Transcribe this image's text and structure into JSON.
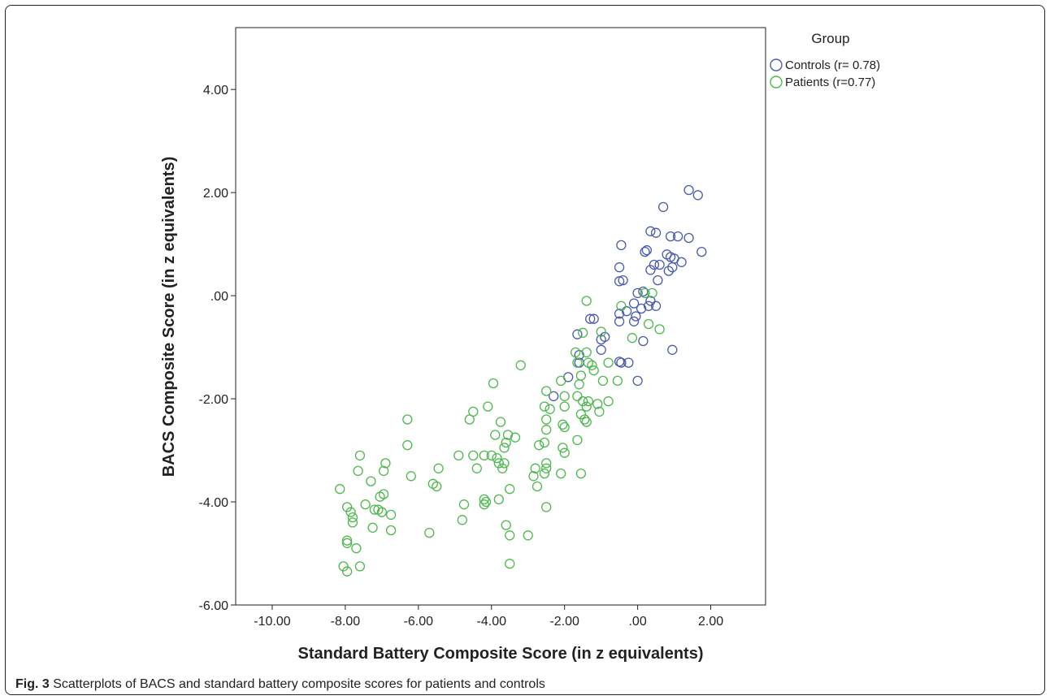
{
  "figure": {
    "label": "Fig. 3",
    "caption": "Scatterplots of BACS and standard battery composite scores for patients and controls"
  },
  "chart_data": {
    "type": "scatter",
    "title": "",
    "xlabel": "Standard Battery Composite Score (in z equivalents)",
    "ylabel": "BACS Composite Score (in z equivalents)",
    "xlim": [
      -11.0,
      3.5
    ],
    "ylim": [
      -6.0,
      5.2
    ],
    "x_ticks": [
      -10,
      -8,
      -6,
      -4,
      -2,
      0,
      2
    ],
    "x_tick_labels": [
      "-10.00",
      "-8.00",
      "-6.00",
      "-4.00",
      "-2.00",
      ".00",
      "2.00"
    ],
    "y_ticks": [
      4,
      2,
      0,
      -2,
      -4,
      -6
    ],
    "y_tick_labels": [
      "4.00",
      "2.00",
      ".00",
      "-2.00",
      "-4.00",
      "-6.00"
    ],
    "grid": false,
    "legend": {
      "title": "Group",
      "position": "outside-top-right"
    },
    "series": [
      {
        "name": "Controls (r= 0.78)",
        "color": "#4a5aad",
        "points": [
          [
            1.4,
            2.05
          ],
          [
            1.65,
            1.95
          ],
          [
            0.7,
            1.72
          ],
          [
            1.4,
            1.12
          ],
          [
            1.75,
            0.85
          ],
          [
            0.35,
            1.25
          ],
          [
            0.5,
            1.22
          ],
          [
            0.9,
            1.15
          ],
          [
            1.1,
            1.15
          ],
          [
            -0.45,
            0.98
          ],
          [
            0.2,
            0.85
          ],
          [
            0.25,
            0.88
          ],
          [
            0.8,
            0.8
          ],
          [
            0.9,
            0.75
          ],
          [
            1.0,
            0.72
          ],
          [
            0.45,
            0.6
          ],
          [
            0.6,
            0.6
          ],
          [
            0.35,
            0.5
          ],
          [
            0.95,
            0.55
          ],
          [
            1.2,
            0.65
          ],
          [
            0.85,
            0.48
          ],
          [
            -0.5,
            0.55
          ],
          [
            -0.5,
            0.28
          ],
          [
            -0.4,
            0.3
          ],
          [
            0.55,
            0.3
          ],
          [
            0.0,
            0.05
          ],
          [
            0.15,
            0.08
          ],
          [
            -0.1,
            -0.15
          ],
          [
            0.35,
            -0.1
          ],
          [
            0.3,
            -0.2
          ],
          [
            0.1,
            -0.25
          ],
          [
            0.5,
            -0.2
          ],
          [
            -0.5,
            -0.35
          ],
          [
            -0.5,
            -0.5
          ],
          [
            -0.05,
            -0.4
          ],
          [
            -0.1,
            -0.5
          ],
          [
            -1.2,
            -0.45
          ],
          [
            -1.3,
            -0.45
          ],
          [
            -0.3,
            -0.3
          ],
          [
            -1.65,
            -0.75
          ],
          [
            -0.9,
            -0.8
          ],
          [
            -1.0,
            -0.85
          ],
          [
            0.15,
            -0.88
          ],
          [
            0.95,
            -1.05
          ],
          [
            -1.0,
            -1.05
          ],
          [
            -1.6,
            -1.15
          ],
          [
            -1.6,
            -1.3
          ],
          [
            -0.5,
            -1.28
          ],
          [
            -0.45,
            -1.3
          ],
          [
            -0.25,
            -1.3
          ],
          [
            -1.9,
            -1.58
          ],
          [
            0.0,
            -1.65
          ],
          [
            -2.3,
            -1.95
          ]
        ]
      },
      {
        "name": "Patients (r=0.77)",
        "color": "#4cb84c",
        "points": [
          [
            -1.4,
            -0.1
          ],
          [
            -0.45,
            -0.2
          ],
          [
            0.2,
            0.05
          ],
          [
            0.4,
            0.05
          ],
          [
            -1.5,
            -0.72
          ],
          [
            0.3,
            -0.55
          ],
          [
            0.6,
            -0.65
          ],
          [
            -1.0,
            -0.7
          ],
          [
            -0.15,
            -0.82
          ],
          [
            -1.4,
            -1.1
          ],
          [
            -1.7,
            -1.1
          ],
          [
            -1.35,
            -1.3
          ],
          [
            -1.65,
            -1.3
          ],
          [
            -1.25,
            -1.35
          ],
          [
            -0.8,
            -1.3
          ],
          [
            -1.2,
            -1.45
          ],
          [
            -1.55,
            -1.55
          ],
          [
            -1.6,
            -1.72
          ],
          [
            -0.55,
            -1.65
          ],
          [
            -0.95,
            -1.65
          ],
          [
            -3.2,
            -1.35
          ],
          [
            -3.95,
            -1.7
          ],
          [
            -2.1,
            -1.65
          ],
          [
            -2.5,
            -1.85
          ],
          [
            -1.65,
            -1.95
          ],
          [
            -2.0,
            -1.95
          ],
          [
            -1.5,
            -2.05
          ],
          [
            -1.35,
            -2.05
          ],
          [
            -1.1,
            -2.1
          ],
          [
            -0.8,
            -2.05
          ],
          [
            -1.4,
            -2.15
          ],
          [
            -1.05,
            -2.25
          ],
          [
            -1.55,
            -2.3
          ],
          [
            -1.45,
            -2.4
          ],
          [
            -1.4,
            -2.45
          ],
          [
            -2.55,
            -2.15
          ],
          [
            -2.4,
            -2.2
          ],
          [
            -2.0,
            -2.15
          ],
          [
            -2.05,
            -2.5
          ],
          [
            -2.0,
            -2.55
          ],
          [
            -2.5,
            -2.4
          ],
          [
            -2.5,
            -2.6
          ],
          [
            -4.1,
            -2.15
          ],
          [
            -4.5,
            -2.25
          ],
          [
            -4.6,
            -2.4
          ],
          [
            -3.75,
            -2.45
          ],
          [
            -6.3,
            -2.4
          ],
          [
            -3.9,
            -2.7
          ],
          [
            -3.55,
            -2.7
          ],
          [
            -3.35,
            -2.75
          ],
          [
            -3.6,
            -2.85
          ],
          [
            -3.65,
            -2.95
          ],
          [
            -2.7,
            -2.9
          ],
          [
            -2.55,
            -2.85
          ],
          [
            -2.05,
            -2.95
          ],
          [
            -2.0,
            -3.05
          ],
          [
            -1.65,
            -2.8
          ],
          [
            -6.3,
            -2.9
          ],
          [
            -4.0,
            -3.1
          ],
          [
            -3.85,
            -3.15
          ],
          [
            -4.2,
            -3.1
          ],
          [
            -3.8,
            -3.25
          ],
          [
            -3.65,
            -3.25
          ],
          [
            -3.7,
            -3.35
          ],
          [
            -4.5,
            -3.1
          ],
          [
            -4.9,
            -3.1
          ],
          [
            -5.45,
            -3.35
          ],
          [
            -6.2,
            -3.5
          ],
          [
            -2.8,
            -3.35
          ],
          [
            -2.5,
            -3.35
          ],
          [
            -2.5,
            -3.25
          ],
          [
            -2.85,
            -3.5
          ],
          [
            -2.55,
            -3.45
          ],
          [
            -2.1,
            -3.45
          ],
          [
            -1.55,
            -3.45
          ],
          [
            -7.6,
            -3.1
          ],
          [
            -6.9,
            -3.25
          ],
          [
            -6.95,
            -3.4
          ],
          [
            -7.65,
            -3.4
          ],
          [
            -7.3,
            -3.6
          ],
          [
            -5.6,
            -3.65
          ],
          [
            -5.5,
            -3.7
          ],
          [
            -3.5,
            -3.75
          ],
          [
            -3.8,
            -3.95
          ],
          [
            -2.75,
            -3.7
          ],
          [
            -4.4,
            -3.35
          ],
          [
            -8.15,
            -3.75
          ],
          [
            -6.95,
            -3.85
          ],
          [
            -7.05,
            -3.9
          ],
          [
            -4.2,
            -3.95
          ],
          [
            -4.15,
            -4.0
          ],
          [
            -4.2,
            -4.05
          ],
          [
            -7.95,
            -4.1
          ],
          [
            -7.45,
            -4.05
          ],
          [
            -7.2,
            -4.15
          ],
          [
            -7.1,
            -4.15
          ],
          [
            -7.85,
            -4.2
          ],
          [
            -7.0,
            -4.2
          ],
          [
            -6.75,
            -4.25
          ],
          [
            -7.8,
            -4.3
          ],
          [
            -4.75,
            -4.05
          ],
          [
            -2.5,
            -4.1
          ],
          [
            -7.8,
            -4.4
          ],
          [
            -7.25,
            -4.5
          ],
          [
            -6.75,
            -4.55
          ],
          [
            -4.8,
            -4.35
          ],
          [
            -3.6,
            -4.45
          ],
          [
            -7.7,
            -4.9
          ],
          [
            -5.7,
            -4.6
          ],
          [
            -3.5,
            -4.65
          ],
          [
            -3.0,
            -4.65
          ],
          [
            -7.95,
            -4.75
          ],
          [
            -7.95,
            -4.8
          ],
          [
            -8.05,
            -5.25
          ],
          [
            -7.6,
            -5.25
          ],
          [
            -7.95,
            -5.35
          ],
          [
            -3.5,
            -5.2
          ]
        ]
      }
    ]
  }
}
